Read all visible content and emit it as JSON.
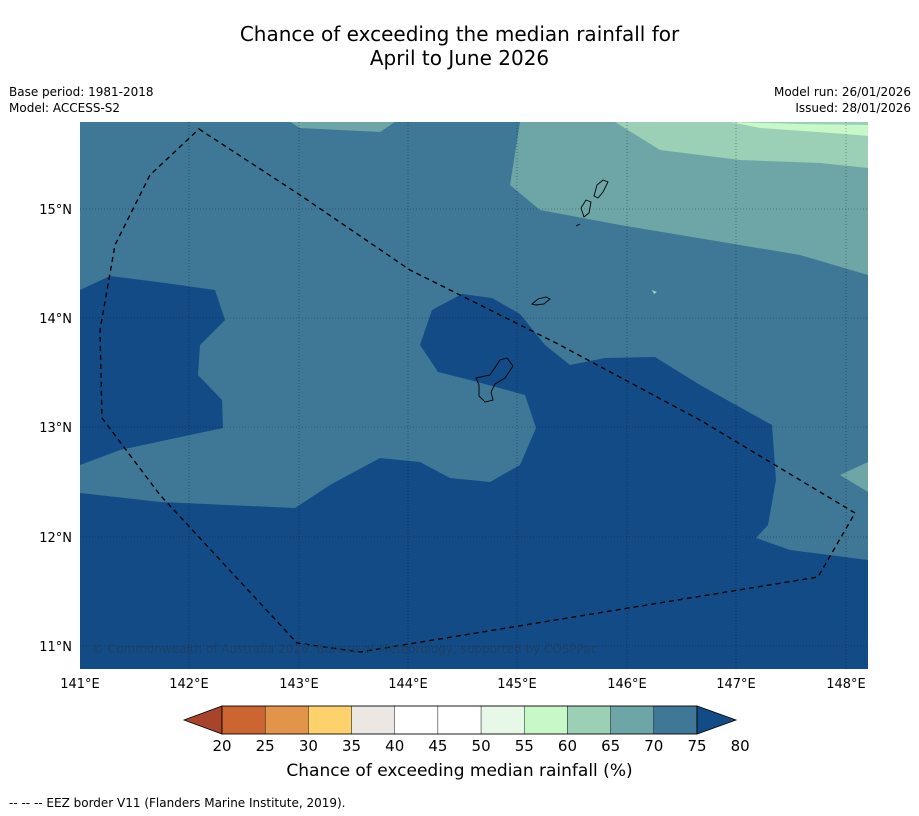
{
  "title": {
    "line1": "Chance of exceeding the median rainfall for",
    "line2": "April to June 2026"
  },
  "meta": {
    "base_period": "Base period: 1981-2018",
    "model": "Model: ACCESS-S2",
    "model_run": "Model run: 26/01/2026",
    "issued": "Issued: 28/01/2026"
  },
  "map": {
    "lon_labels": [
      "141°E",
      "142°E",
      "143°E",
      "144°E",
      "145°E",
      "146°E",
      "147°E",
      "148°E"
    ],
    "lat_labels": [
      "15°N",
      "14°N",
      "13°N",
      "12°N",
      "11°N"
    ],
    "copyright": "© Commonwealth of Australia 2026, Bureau of Meteorology, supported by COSPPac",
    "colors": {
      "band_70_75": "#6ea5a6",
      "band_65_70": "#9bcfb6",
      "band_60_65": "#c8f7c8",
      "band_75_80": "#3f7797",
      "band_above_80": "#134b87",
      "eez_border": "#000000"
    }
  },
  "colorbar": {
    "ticks": [
      "20",
      "25",
      "30",
      "35",
      "40",
      "45",
      "50",
      "55",
      "60",
      "65",
      "70",
      "75",
      "80"
    ],
    "colors": [
      "#a8442c",
      "#cd6532",
      "#e2944a",
      "#fdd16c",
      "#ece7e2",
      "#ffffff",
      "#ffffff",
      "#e8f8e8",
      "#c8f7c8",
      "#9bcfb6",
      "#6ea5a6",
      "#3f7797",
      "#134b87"
    ],
    "label": "Chance of exceeding median rainfall (%)"
  },
  "footnote": "--  --  -- EEZ border V11 (Flanders Marine Institute, 2019)."
}
